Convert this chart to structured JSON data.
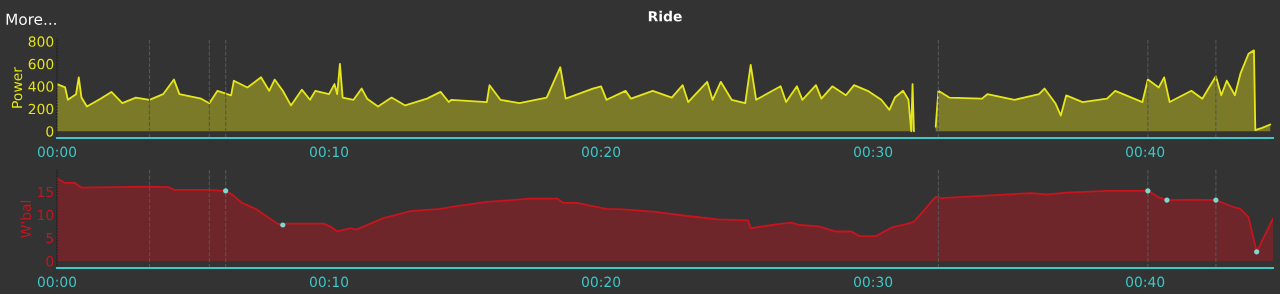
{
  "chart_data": [
    {
      "type": "area",
      "title": "Ride",
      "ylabel": "Power",
      "annotations": [
        "More..."
      ],
      "xlim": [
        0,
        44.7
      ],
      "xticks": [
        {
          "value": 0,
          "label": "00:00"
        },
        {
          "value": 10,
          "label": "00:10"
        },
        {
          "value": 20,
          "label": "00:20"
        },
        {
          "value": 30,
          "label": "00:30"
        },
        {
          "value": 40,
          "label": "00:40"
        }
      ],
      "ylim": [
        -60,
        830
      ],
      "yticks": [
        0,
        200,
        400,
        600,
        800
      ],
      "grid": false,
      "legend": false,
      "ref_lines": [
        {
          "axis": "x",
          "value": 3.4,
          "color": "#555555",
          "line_style": "dashed"
        },
        {
          "axis": "x",
          "value": 5.6,
          "color": "#555555",
          "line_style": "dashed"
        },
        {
          "axis": "x",
          "value": 6.2,
          "color": "#555555",
          "line_style": "dashed"
        },
        {
          "axis": "x",
          "value": 32.4,
          "color": "#555555",
          "line_style": "dashed"
        },
        {
          "axis": "x",
          "value": 40.1,
          "color": "#555555",
          "line_style": "dashed"
        },
        {
          "axis": "x",
          "value": 42.6,
          "color": "#555555",
          "line_style": "dashed"
        }
      ],
      "series": [
        {
          "color": "#e6e619",
          "x": [
            0,
            0.3,
            0.4,
            0.7,
            0.8,
            0.9,
            1.1,
            1.6,
            2.0,
            2.4,
            2.9,
            3.4,
            3.9,
            4.3,
            4.5,
            5.3,
            5.6,
            5.9,
            6.4,
            6.5,
            7.0,
            7.5,
            7.8,
            8.0,
            8.3,
            8.6,
            9.0,
            9.3,
            9.5,
            10.0,
            10.2,
            10.3,
            10.4,
            10.5,
            10.9,
            11.2,
            11.4,
            11.8,
            12.3,
            12.8,
            13.6,
            14.1,
            14.4,
            14.5,
            15.8,
            15.9,
            16.3,
            17.0,
            18.0,
            18.5,
            18.7,
            19.7,
            20.0,
            20.2,
            20.9,
            21.1,
            21.9,
            22.6,
            23.0,
            23.2,
            23.9,
            24.1,
            24.4,
            24.8,
            25.3,
            25.5,
            25.7,
            26.6,
            26.8,
            27.2,
            27.4,
            27.9,
            28.1,
            28.5,
            29.0,
            29.3,
            29.8,
            30.3,
            30.6,
            30.8,
            31.1,
            31.3,
            31.4,
            31.45,
            31.5,
            31.9,
            32.3,
            32.4,
            32.8,
            34.0,
            34.2,
            35.2,
            36.1,
            36.3,
            36.7,
            36.9,
            37.1,
            37.7,
            38.6,
            38.9,
            39.9,
            40.1,
            40.5,
            40.7,
            40.9,
            41.7,
            42.1,
            42.6,
            42.8,
            43.0,
            43.3,
            43.5,
            43.8,
            44.0,
            44.05,
            44.3,
            44.6
          ],
          "values": [
            420,
            390,
            280,
            330,
            480,
            300,
            220,
            290,
            350,
            250,
            300,
            280,
            330,
            460,
            330,
            290,
            250,
            360,
            320,
            450,
            390,
            480,
            360,
            460,
            360,
            230,
            370,
            280,
            360,
            330,
            420,
            330,
            600,
            300,
            280,
            380,
            290,
            220,
            300,
            230,
            290,
            350,
            260,
            280,
            260,
            410,
            280,
            250,
            300,
            570,
            290,
            380,
            400,
            280,
            360,
            290,
            360,
            300,
            410,
            260,
            440,
            280,
            440,
            280,
            250,
            590,
            280,
            400,
            260,
            400,
            280,
            410,
            290,
            400,
            320,
            410,
            360,
            280,
            190,
            300,
            360,
            280,
            0,
            420,
            0,
            null,
            40,
            360,
            300,
            290,
            330,
            280,
            330,
            380,
            250,
            140,
            320,
            260,
            290,
            360,
            260,
            460,
            390,
            480,
            260,
            360,
            290,
            490,
            320,
            450,
            320,
            510,
            690,
            720,
            10,
            30,
            60
          ]
        }
      ]
    },
    {
      "type": "area",
      "ylabel": "W'bal",
      "xlim": [
        0,
        44.7
      ],
      "xticks": [
        {
          "value": 0,
          "label": "00:00"
        },
        {
          "value": 10,
          "label": "00:10"
        },
        {
          "value": 20,
          "label": "00:20"
        },
        {
          "value": 30,
          "label": "00:30"
        },
        {
          "value": 40,
          "label": "00:40"
        }
      ],
      "ylim": [
        -1.5,
        19.7
      ],
      "yticks": [
        0,
        5,
        10,
        15
      ],
      "grid": false,
      "legend": false,
      "ref_lines": [
        {
          "axis": "x",
          "value": 3.4,
          "color": "#555555",
          "line_style": "dashed"
        },
        {
          "axis": "x",
          "value": 5.6,
          "color": "#555555",
          "line_style": "dashed"
        },
        {
          "axis": "x",
          "value": 6.2,
          "color": "#555555",
          "line_style": "dashed"
        },
        {
          "axis": "x",
          "value": 32.4,
          "color": "#555555",
          "line_style": "dashed"
        },
        {
          "axis": "x",
          "value": 40.1,
          "color": "#555555",
          "line_style": "dashed"
        },
        {
          "axis": "x",
          "value": 42.6,
          "color": "#555555",
          "line_style": "dashed"
        }
      ],
      "series": [
        {
          "color": "#c8141e",
          "x": [
            0,
            0.3,
            0.66,
            0.9,
            3.3,
            4.1,
            4.3,
            5.5,
            6.2,
            6.5,
            6.8,
            7.3,
            7.7,
            8.1,
            8.3,
            8.4,
            9.8,
            10.1,
            10.3,
            10.8,
            11.0,
            12.0,
            13.0,
            14.1,
            14.5,
            15.8,
            17.4,
            18.4,
            18.6,
            19.1,
            20.2,
            20.8,
            21.9,
            23.1,
            24.3,
            25.4,
            25.5,
            26.5,
            27.0,
            27.3,
            28.0,
            28.6,
            29.2,
            29.5,
            30.1,
            30.7,
            31.2,
            31.5,
            32.3,
            32.5,
            34.0,
            35.8,
            36.4,
            37.1,
            38.6,
            40.1,
            40.5,
            40.8,
            41.8,
            42.6,
            43.2,
            43.5,
            43.8,
            44.1,
            44.7
          ],
          "values": [
            17.9,
            16.9,
            16.9,
            15.9,
            16.1,
            16.0,
            15.4,
            15.4,
            15.2,
            14.1,
            12.6,
            11.3,
            9.7,
            8.1,
            7.8,
            8.1,
            8.1,
            7.3,
            6.4,
            7.1,
            6.8,
            9.3,
            10.8,
            11.3,
            11.7,
            12.8,
            13.5,
            13.5,
            12.6,
            12.6,
            11.3,
            11.2,
            10.7,
            9.8,
            9.0,
            8.8,
            7.1,
            8.0,
            8.3,
            7.8,
            7.5,
            6.4,
            6.4,
            5.4,
            5.4,
            7.3,
            8.0,
            8.5,
            13.9,
            13.6,
            14.1,
            14.7,
            14.4,
            14.8,
            15.2,
            15.2,
            13.8,
            13.2,
            13.3,
            13.2,
            11.8,
            11.3,
            9.5,
            2.0,
            9.2
          ]
        },
        {
          "type": "scatter",
          "color": "#7fd8d0",
          "marker": "circle",
          "x": [
            6.2,
            8.3,
            40.1,
            40.8,
            42.6,
            44.1
          ],
          "values": [
            15.2,
            7.8,
            15.2,
            13.2,
            13.2,
            2.0
          ]
        }
      ]
    }
  ]
}
